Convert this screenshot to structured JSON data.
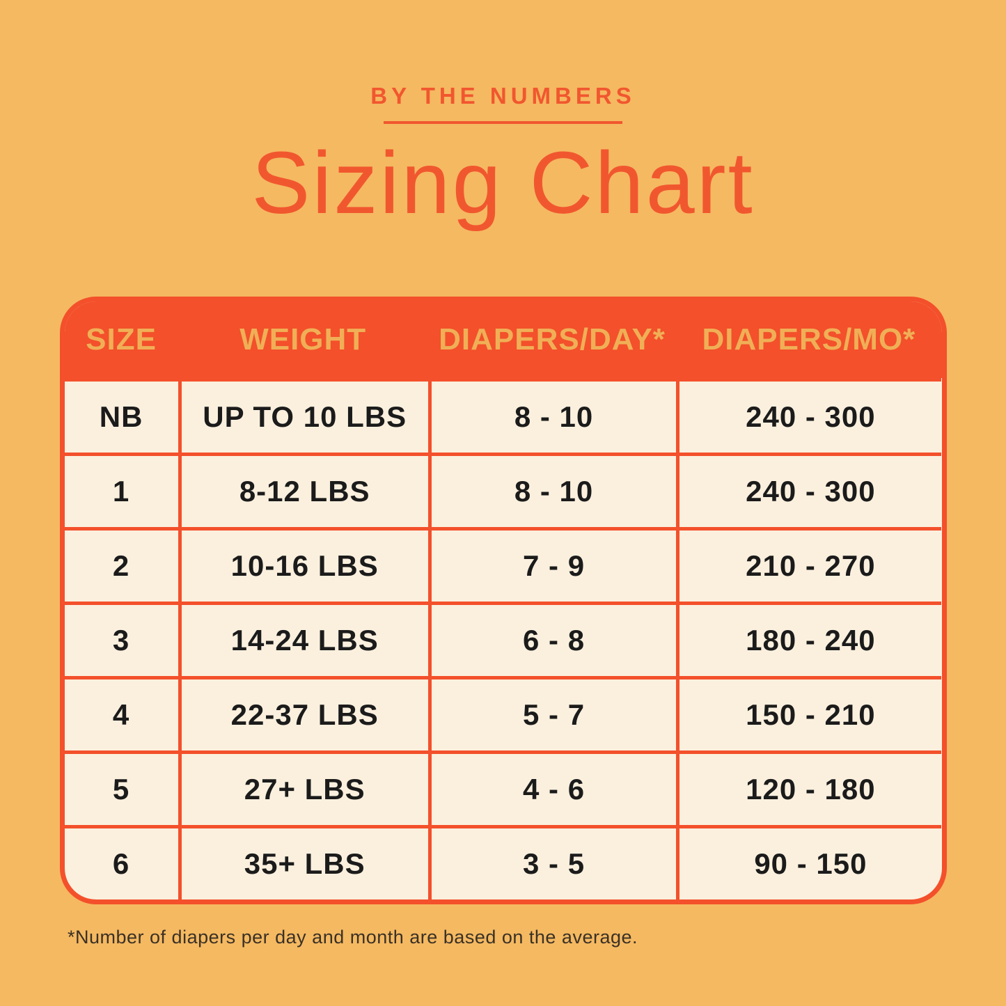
{
  "page": {
    "eyebrow": "BY THE NUMBERS",
    "title": "Sizing Chart",
    "footnote": "*Number of diapers per day and month are based on the average."
  },
  "colors": {
    "background": "#F5B961",
    "accent_orange_red": "#F3502B",
    "title_text": "#F1572F",
    "header_text_gold": "#F0AF56",
    "cell_cream": "#FBF0DE",
    "cell_text": "#1B1B1B",
    "footnote_text": "#3A3126"
  },
  "chart_data": {
    "type": "table",
    "title": "Sizing Chart",
    "subtitle": "BY THE NUMBERS",
    "columns": [
      "SIZE",
      "WEIGHT",
      "DIAPERS/DAY*",
      "DIAPERS/MO*"
    ],
    "rows": [
      [
        "NB",
        "UP TO 10 LBS",
        "8 - 10",
        "240 - 300"
      ],
      [
        "1",
        "8-12 LBS",
        "8 - 10",
        "240 - 300"
      ],
      [
        "2",
        "10-16 LBS",
        "7 - 9",
        "210 - 270"
      ],
      [
        "3",
        "14-24 LBS",
        "6 - 8",
        "180 - 240"
      ],
      [
        "4",
        "22-37 LBS",
        "5 - 7",
        "150 - 210"
      ],
      [
        "5",
        "27+ LBS",
        "4 - 6",
        "120 - 180"
      ],
      [
        "6",
        "35+ LBS",
        "3 - 5",
        "90 - 150"
      ]
    ],
    "footnote": "*Number of diapers per day and month are based on the average."
  }
}
